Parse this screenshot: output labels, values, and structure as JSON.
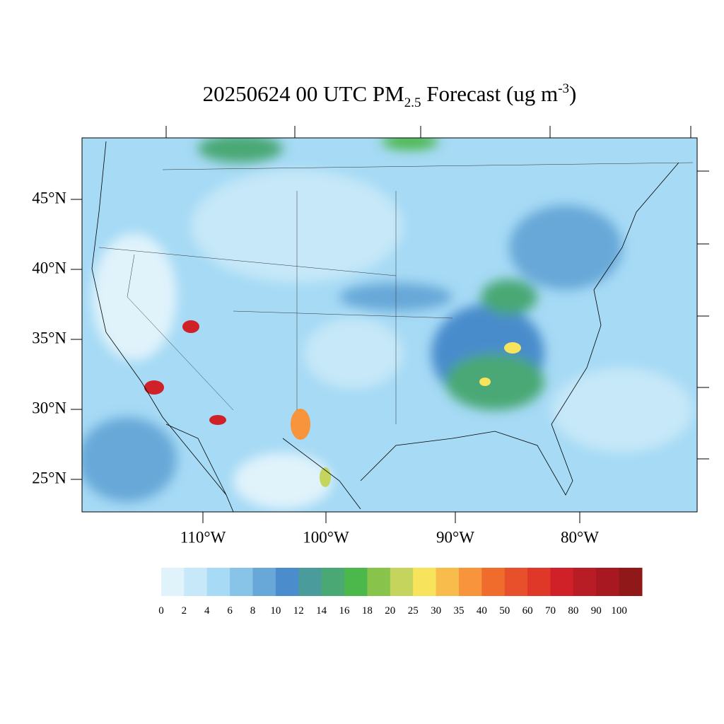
{
  "title": {
    "main": "20250624 00 UTC PM",
    "sub": "2.5",
    "mid": " Forecast (ug m",
    "sup": "-3",
    "end": ")"
  },
  "map": {
    "lat_labels": [
      "45°N",
      "40°N",
      "35°N",
      "30°N",
      "25°N"
    ],
    "lon_labels": [
      "110°W",
      "100°W",
      "90°W",
      "80°W"
    ]
  },
  "colorbar": {
    "levels": [
      0,
      2,
      4,
      6,
      8,
      10,
      12,
      14,
      16,
      18,
      20,
      25,
      30,
      35,
      40,
      50,
      60,
      70,
      80,
      90,
      100
    ],
    "colors": [
      "#e0f3fb",
      "#c6e8f8",
      "#a6daf5",
      "#88c4e8",
      "#68a8d8",
      "#4a8ccc",
      "#4a9c9c",
      "#4aa874",
      "#4cb84c",
      "#88c44c",
      "#c4d45c",
      "#f8e45c",
      "#f8bc4c",
      "#f8943c",
      "#f06c2c",
      "#e8502c",
      "#e03828",
      "#d02028",
      "#b81c24",
      "#a81820",
      "#901818"
    ]
  }
}
